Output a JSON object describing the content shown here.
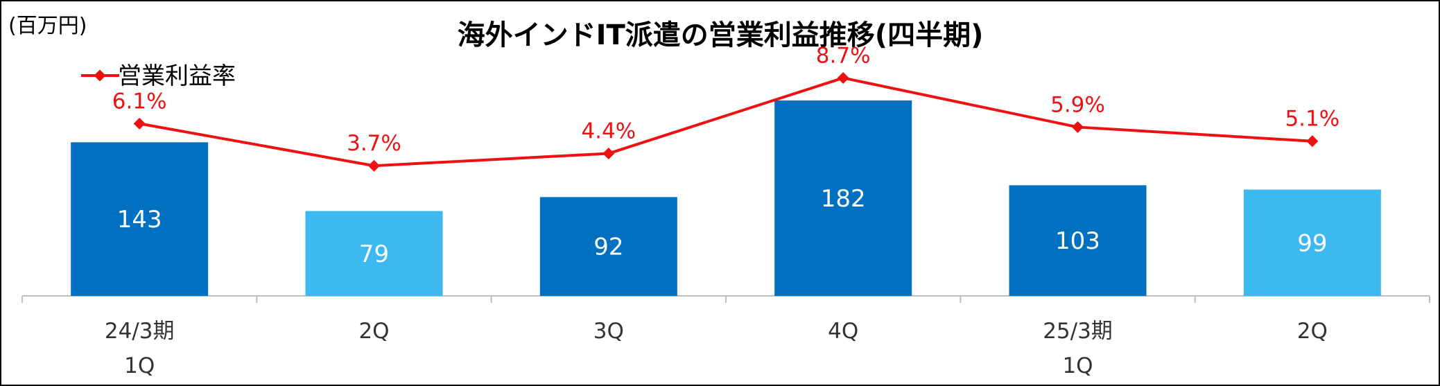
{
  "chart_data": {
    "type": "bar",
    "title": "海外インドIT派遣の営業利益推移(四半期)",
    "unit_label": "(百万円)",
    "categories": [
      [
        "24/3期",
        "1Q"
      ],
      [
        "2Q"
      ],
      [
        "3Q"
      ],
      [
        "4Q"
      ],
      [
        "25/3期",
        "1Q"
      ],
      [
        "2Q"
      ]
    ],
    "values": [
      143,
      79,
      92,
      182,
      103,
      99
    ],
    "bar_colors": [
      "#0070c0",
      "#3cb9ef",
      "#0070c0",
      "#0070c0",
      "#0070c0",
      "#3cb9ef"
    ],
    "line_series": {
      "name": "営業利益率",
      "values": [
        6.1,
        3.7,
        4.4,
        8.7,
        5.9,
        5.1
      ],
      "labels": [
        "6.1%",
        "3.7%",
        "4.4%",
        "8.7%",
        "5.9%",
        "5.1%"
      ],
      "color": "#ee1111"
    },
    "legend_position": "top-left",
    "grid": false
  }
}
